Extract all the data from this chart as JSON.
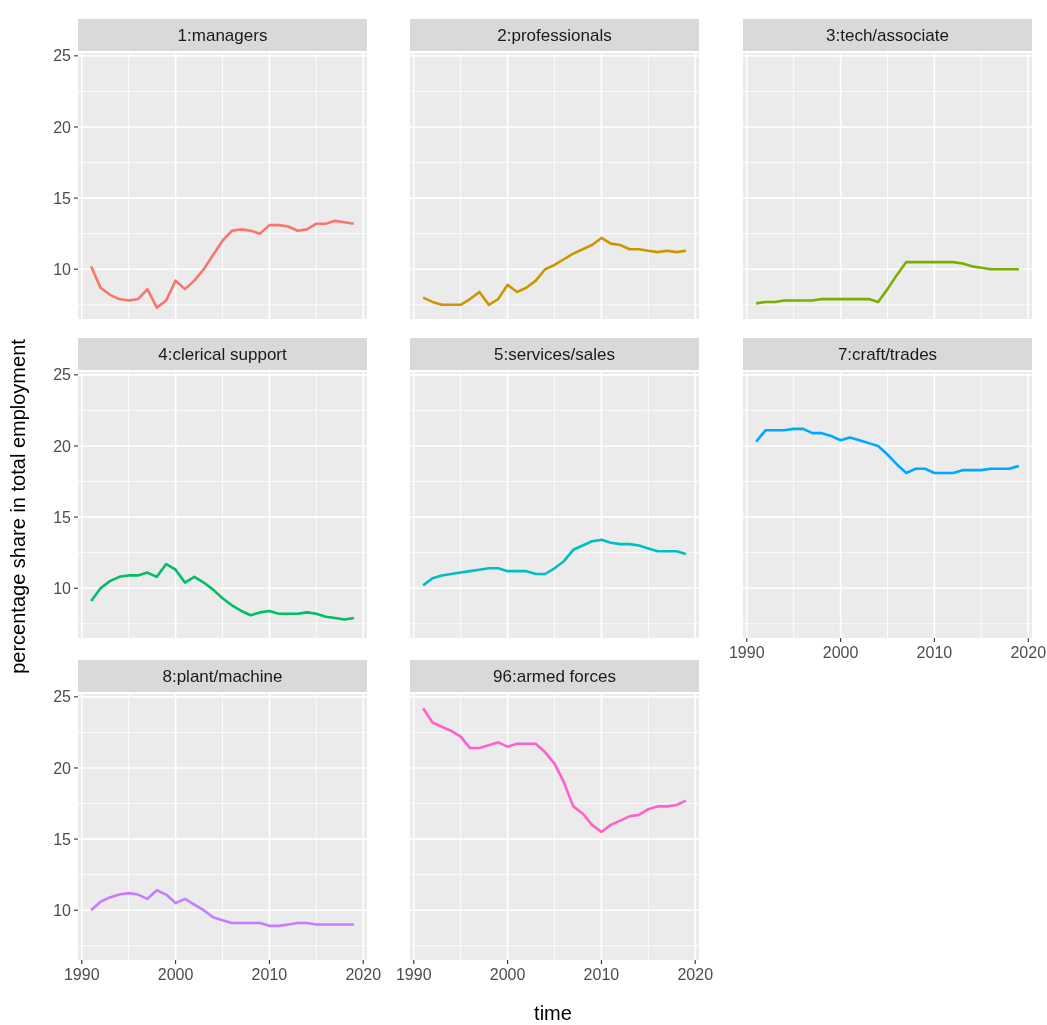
{
  "chart_data": [
    {
      "type": "line",
      "title": "1:managers",
      "ylabel": "percentage share in total employment",
      "x": [
        1991,
        1992,
        1993,
        1994,
        1995,
        1996,
        1997,
        1998,
        1999,
        2000,
        2001,
        2002,
        2003,
        2004,
        2005,
        2006,
        2007,
        2008,
        2009,
        2010,
        2011,
        2012,
        2013,
        2014,
        2015,
        2016,
        2017,
        2018,
        2019
      ],
      "series": [
        {
          "color": "#f8766d",
          "values": [
            10.2,
            8.7,
            8.2,
            7.9,
            7.8,
            7.9,
            8.6,
            7.3,
            7.8,
            9.2,
            8.6,
            9.2,
            10.0,
            11.0,
            12.0,
            12.7,
            12.8,
            12.7,
            12.5,
            13.1,
            13.1,
            13.0,
            12.7,
            12.8,
            13.2,
            13.2,
            13.4,
            13.3,
            13.2
          ]
        }
      ],
      "xlim": [
        1989.6,
        2020.4
      ],
      "ylim": [
        6.5,
        25.2
      ],
      "xticks": [
        1990,
        2000,
        2010,
        2020
      ],
      "yticks": [
        10,
        15,
        20,
        25
      ],
      "grid": true,
      "tick_labels": "y"
    },
    {
      "type": "line",
      "title": "2:professionals",
      "x": [
        1991,
        1992,
        1993,
        1994,
        1995,
        1996,
        1997,
        1998,
        1999,
        2000,
        2001,
        2002,
        2003,
        2004,
        2005,
        2006,
        2007,
        2008,
        2009,
        2010,
        2011,
        2012,
        2013,
        2014,
        2015,
        2016,
        2017,
        2018,
        2019
      ],
      "series": [
        {
          "color": "#cd9600",
          "values": [
            8.0,
            7.7,
            7.5,
            7.5,
            7.5,
            7.9,
            8.4,
            7.5,
            7.9,
            8.9,
            8.4,
            8.7,
            9.2,
            10.0,
            10.3,
            10.7,
            11.1,
            11.4,
            11.7,
            12.2,
            11.8,
            11.7,
            11.4,
            11.4,
            11.3,
            11.2,
            11.3,
            11.2,
            11.3
          ]
        }
      ],
      "xlim": [
        1989.6,
        2020.4
      ],
      "ylim": [
        6.5,
        25.2
      ],
      "xticks": [
        1990,
        2000,
        2010,
        2020
      ],
      "yticks": [
        10,
        15,
        20,
        25
      ],
      "grid": true,
      "tick_labels": false
    },
    {
      "type": "line",
      "title": "3:tech/associate",
      "x": [
        1991,
        1992,
        1993,
        1994,
        1995,
        1996,
        1997,
        1998,
        1999,
        2000,
        2001,
        2002,
        2003,
        2004,
        2005,
        2006,
        2007,
        2008,
        2009,
        2010,
        2011,
        2012,
        2013,
        2014,
        2015,
        2016,
        2017,
        2018,
        2019
      ],
      "series": [
        {
          "color": "#7cae00",
          "values": [
            7.6,
            7.7,
            7.7,
            7.8,
            7.8,
            7.8,
            7.8,
            7.9,
            7.9,
            7.9,
            7.9,
            7.9,
            7.9,
            7.7,
            8.6,
            9.6,
            10.5,
            10.5,
            10.5,
            10.5,
            10.5,
            10.5,
            10.4,
            10.2,
            10.1,
            10.0,
            10.0,
            10.0,
            10.0
          ]
        }
      ],
      "xlim": [
        1989.6,
        2020.4
      ],
      "ylim": [
        6.5,
        25.2
      ],
      "xticks": [
        1990,
        2000,
        2010,
        2020
      ],
      "yticks": [
        10,
        15,
        20,
        25
      ],
      "grid": true,
      "tick_labels": false
    },
    {
      "type": "line",
      "title": "4:clerical support",
      "x": [
        1991,
        1992,
        1993,
        1994,
        1995,
        1996,
        1997,
        1998,
        1999,
        2000,
        2001,
        2002,
        2003,
        2004,
        2005,
        2006,
        2007,
        2008,
        2009,
        2010,
        2011,
        2012,
        2013,
        2014,
        2015,
        2016,
        2017,
        2018,
        2019
      ],
      "series": [
        {
          "color": "#00be67",
          "values": [
            9.1,
            10.0,
            10.5,
            10.8,
            10.9,
            10.9,
            11.1,
            10.8,
            11.7,
            11.3,
            10.4,
            10.8,
            10.4,
            9.9,
            9.3,
            8.8,
            8.4,
            8.1,
            8.3,
            8.4,
            8.2,
            8.2,
            8.2,
            8.3,
            8.2,
            8.0,
            7.9,
            7.8,
            7.9
          ]
        }
      ],
      "xlim": [
        1989.6,
        2020.4
      ],
      "ylim": [
        6.5,
        25.2
      ],
      "xticks": [
        1990,
        2000,
        2010,
        2020
      ],
      "yticks": [
        10,
        15,
        20,
        25
      ],
      "grid": true,
      "tick_labels": "y"
    },
    {
      "type": "line",
      "title": "5:services/sales",
      "x": [
        1991,
        1992,
        1993,
        1994,
        1995,
        1996,
        1997,
        1998,
        1999,
        2000,
        2001,
        2002,
        2003,
        2004,
        2005,
        2006,
        2007,
        2008,
        2009,
        2010,
        2011,
        2012,
        2013,
        2014,
        2015,
        2016,
        2017,
        2018,
        2019
      ],
      "series": [
        {
          "color": "#00bfc4",
          "values": [
            10.2,
            10.7,
            10.9,
            11.0,
            11.1,
            11.2,
            11.3,
            11.4,
            11.4,
            11.2,
            11.2,
            11.2,
            11.0,
            11.0,
            11.4,
            11.9,
            12.7,
            13.0,
            13.3,
            13.4,
            13.2,
            13.1,
            13.1,
            13.0,
            12.8,
            12.6,
            12.6,
            12.6,
            12.4
          ]
        }
      ],
      "xlim": [
        1989.6,
        2020.4
      ],
      "ylim": [
        6.5,
        25.2
      ],
      "xticks": [
        1990,
        2000,
        2010,
        2020
      ],
      "yticks": [
        10,
        15,
        20,
        25
      ],
      "grid": true,
      "tick_labels": false
    },
    {
      "type": "line",
      "title": "7:craft/trades",
      "x": [
        1991,
        1992,
        1993,
        1994,
        1995,
        1996,
        1997,
        1998,
        1999,
        2000,
        2001,
        2002,
        2003,
        2004,
        2005,
        2006,
        2007,
        2008,
        2009,
        2010,
        2011,
        2012,
        2013,
        2014,
        2015,
        2016,
        2017,
        2018,
        2019
      ],
      "series": [
        {
          "color": "#00a9ff",
          "values": [
            20.3,
            21.1,
            21.1,
            21.1,
            21.2,
            21.2,
            20.9,
            20.9,
            20.7,
            20.4,
            20.6,
            20.4,
            20.2,
            20.0,
            19.4,
            18.7,
            18.1,
            18.4,
            18.4,
            18.1,
            18.1,
            18.1,
            18.3,
            18.3,
            18.3,
            18.4,
            18.4,
            18.4,
            18.6
          ]
        }
      ],
      "xlim": [
        1989.6,
        2020.4
      ],
      "ylim": [
        6.5,
        25.2
      ],
      "xticks": [
        1990,
        2000,
        2010,
        2020
      ],
      "yticks": [
        10,
        15,
        20,
        25
      ],
      "grid": true,
      "tick_labels": "x"
    },
    {
      "type": "line",
      "title": "8:plant/machine",
      "x": [
        1991,
        1992,
        1993,
        1994,
        1995,
        1996,
        1997,
        1998,
        1999,
        2000,
        2001,
        2002,
        2003,
        2004,
        2005,
        2006,
        2007,
        2008,
        2009,
        2010,
        2011,
        2012,
        2013,
        2014,
        2015,
        2016,
        2017,
        2018,
        2019
      ],
      "series": [
        {
          "color": "#c77cff",
          "values": [
            10.0,
            10.6,
            10.9,
            11.1,
            11.2,
            11.1,
            10.8,
            11.4,
            11.1,
            10.5,
            10.8,
            10.4,
            10.0,
            9.5,
            9.3,
            9.1,
            9.1,
            9.1,
            9.1,
            8.9,
            8.9,
            9.0,
            9.1,
            9.1,
            9.0,
            9.0,
            9.0,
            9.0,
            9.0
          ]
        }
      ],
      "xlim": [
        1989.6,
        2020.4
      ],
      "ylim": [
        6.5,
        25.2
      ],
      "xticks": [
        1990,
        2000,
        2010,
        2020
      ],
      "yticks": [
        10,
        15,
        20,
        25
      ],
      "grid": true
    },
    {
      "type": "line",
      "title": "96:armed forces",
      "xlabel": "time",
      "x": [
        1991,
        1992,
        1993,
        1994,
        1995,
        1996,
        1997,
        1998,
        1999,
        2000,
        2001,
        2002,
        2003,
        2004,
        2005,
        2006,
        2007,
        2008,
        2009,
        2010,
        2011,
        2012,
        2013,
        2014,
        2015,
        2016,
        2017,
        2018,
        2019
      ],
      "series": [
        {
          "color": "#ff61cc",
          "values": [
            24.2,
            23.2,
            22.9,
            22.6,
            22.2,
            21.4,
            21.4,
            21.6,
            21.8,
            21.5,
            21.7,
            21.7,
            21.7,
            21.1,
            20.3,
            19.0,
            17.3,
            16.8,
            16.0,
            15.5,
            16.0,
            16.3,
            16.6,
            16.7,
            17.1,
            17.3,
            17.3,
            17.4,
            17.7
          ]
        }
      ],
      "xlim": [
        1989.6,
        2020.4
      ],
      "ylim": [
        6.5,
        25.2
      ],
      "xticks": [
        1990,
        2000,
        2010,
        2020
      ],
      "yticks": [
        10,
        15,
        20,
        25
      ],
      "grid": true,
      "tick_labels": "x"
    }
  ]
}
